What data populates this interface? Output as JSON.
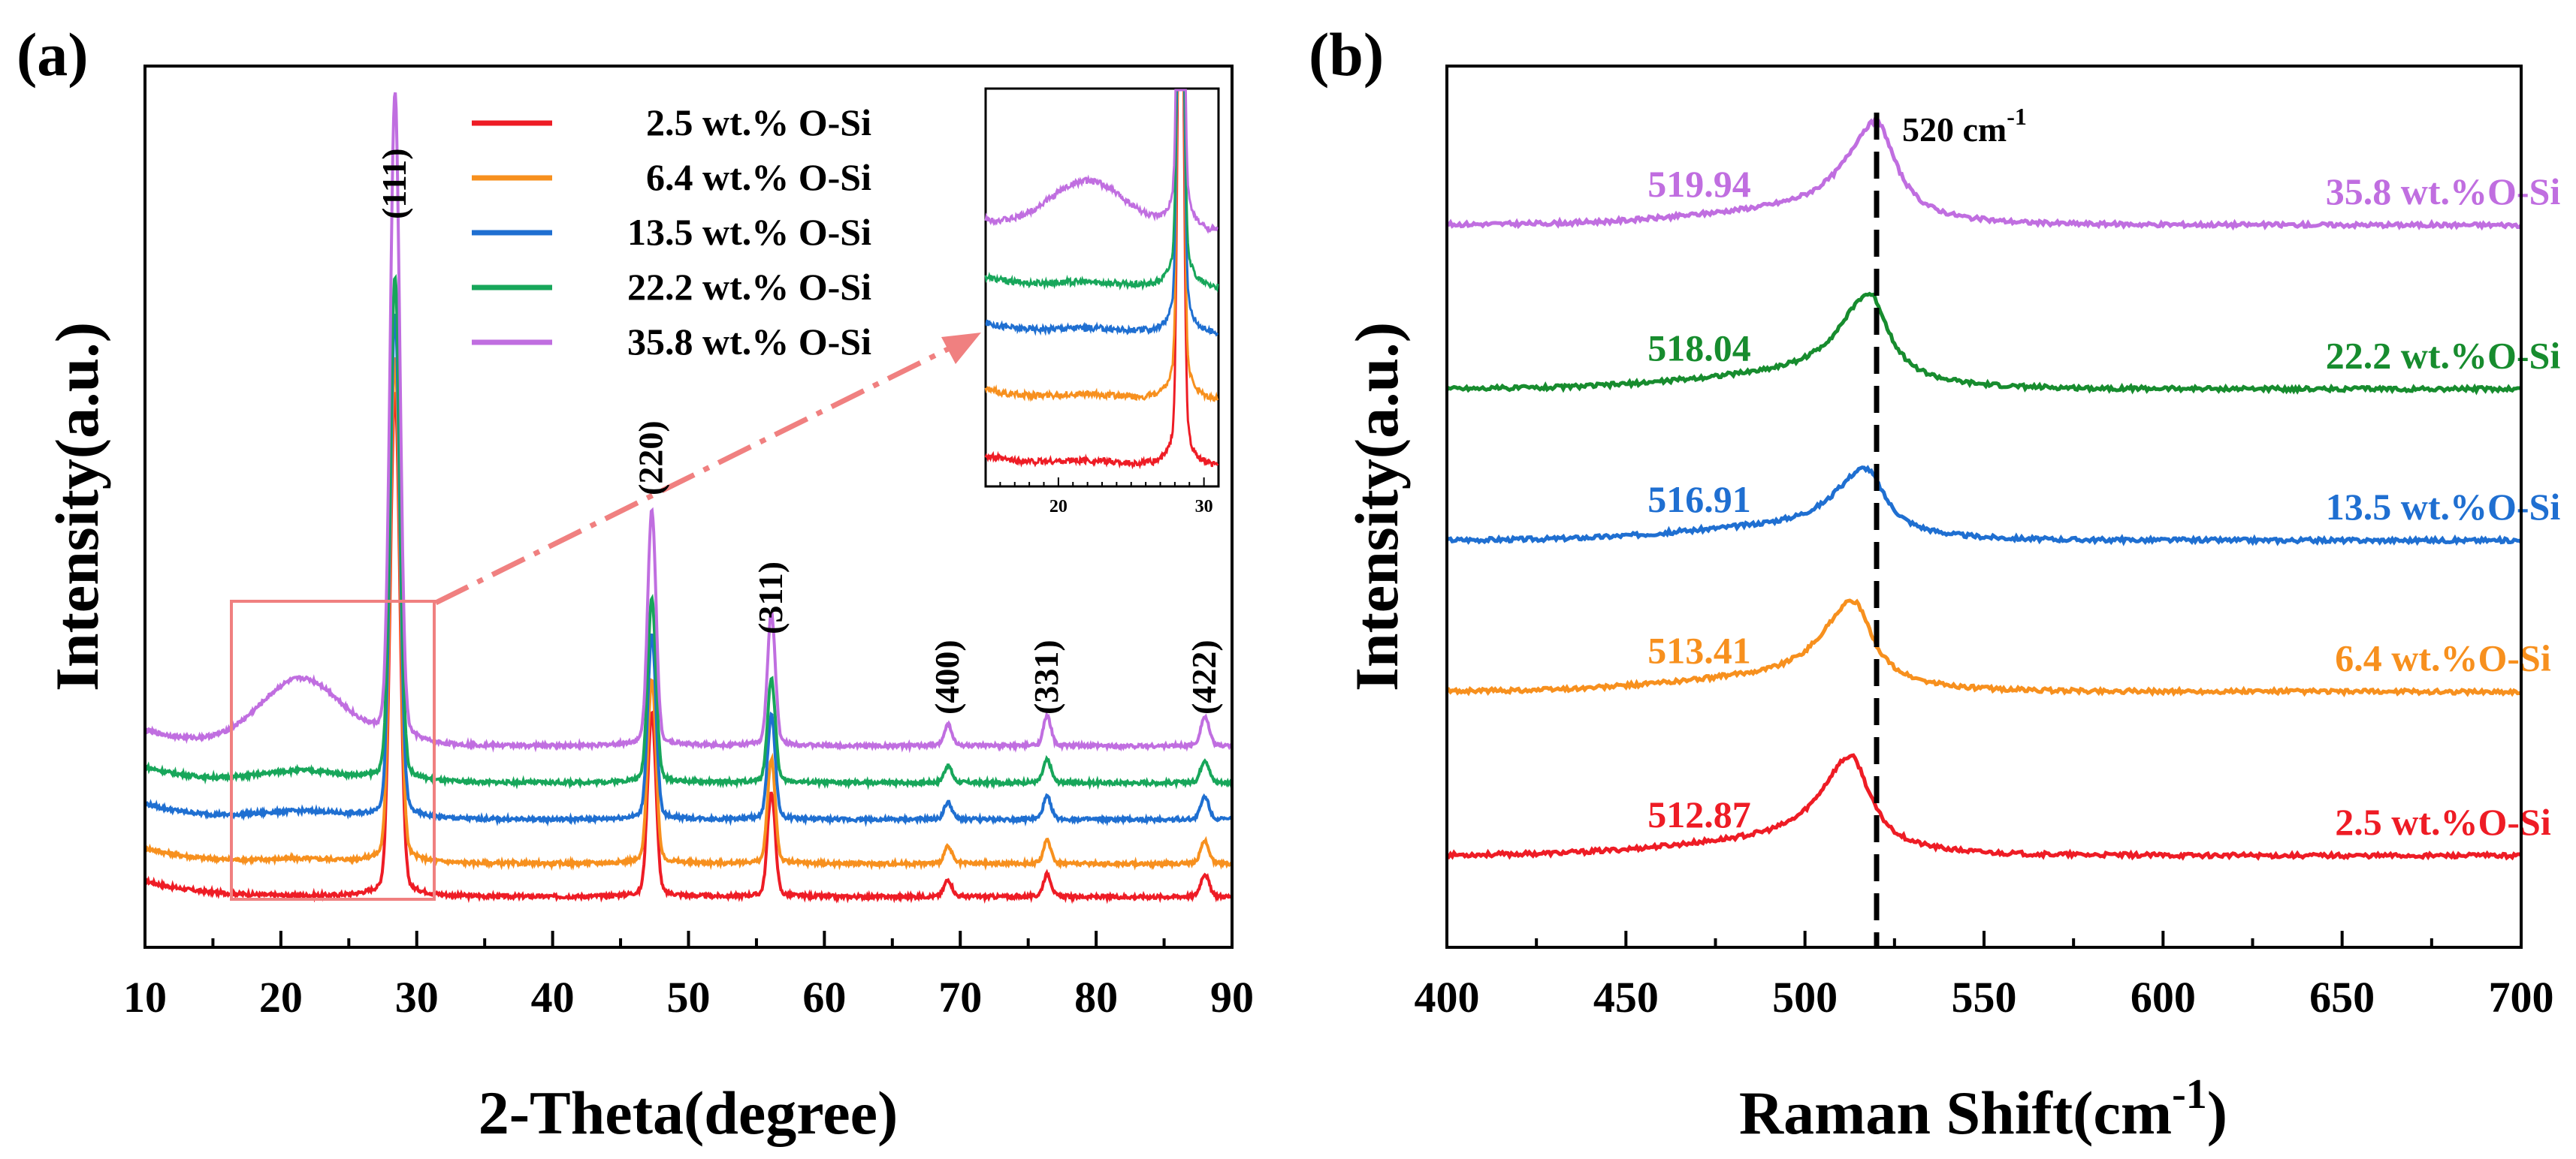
{
  "chart_data": [
    {
      "panel": "(a)",
      "type": "line",
      "xlabel": "2-Theta(degree)",
      "ylabel": "Intensity(a.u.)",
      "xlim": [
        10,
        90
      ],
      "xticks": [
        10,
        20,
        30,
        40,
        50,
        60,
        70,
        80,
        90
      ],
      "yticks": "none",
      "legend_location": "top-center",
      "legend": [
        "2.5 wt.% O-Si",
        "6.4 wt.% O-Si",
        "13.5 wt.% O-Si",
        "22.2 wt.% O-Si",
        "35.8 wt.% O-Si"
      ],
      "series": [
        {
          "name": "2.5 wt.% O-Si",
          "color": "#ee1c25",
          "offset": 0,
          "hump": 0
        },
        {
          "name": "6.4 wt.% O-Si",
          "color": "#f7901e",
          "offset": 0.45,
          "hump": 0.05
        },
        {
          "name": "13.5 wt.% O-Si",
          "color": "#1f6fd1",
          "offset": 1.05,
          "hump": 0.1
        },
        {
          "name": "22.2 wt.% O-Si",
          "color": "#17a65a",
          "offset": 1.55,
          "hump": 0.15
        },
        {
          "name": "35.8 wt.% O-Si",
          "color": "#c06ee0",
          "offset": 2.05,
          "hump": 0.9
        }
      ],
      "peaks": [
        {
          "label": "(111)",
          "position": 28.4
        },
        {
          "label": "(220)",
          "position": 47.3
        },
        {
          "label": "(311)",
          "position": 56.1
        },
        {
          "label": "(400)",
          "position": 69.1
        },
        {
          "label": "(331)",
          "position": 76.4
        },
        {
          "label": "(422)",
          "position": 88.0
        }
      ],
      "inset": {
        "xlim": [
          15,
          31
        ],
        "xticks": [
          20,
          30
        ],
        "source_region_x": [
          16.5,
          31.5
        ]
      }
    },
    {
      "panel": "(b)",
      "type": "line",
      "xlabel": "Raman Shift(cm",
      "xlabel_sup": "-1",
      "xlabel_close": ")",
      "ylabel": "Intensity(a.u.)",
      "xlim": [
        400,
        700
      ],
      "xticks": [
        400,
        450,
        500,
        550,
        600,
        650,
        700
      ],
      "reference_line": {
        "x": 520,
        "label": "520 cm",
        "label_sup": "-1"
      },
      "series": [
        {
          "name": "2.5 wt.%O-Si",
          "color": "#ee1c25",
          "peak": 512.87,
          "peak_label": "512.87",
          "offset": 0,
          "height": 1.1
        },
        {
          "name": "6.4 wt.%O-Si",
          "color": "#f7901e",
          "peak": 513.41,
          "peak_label": "513.41",
          "offset": 1.95,
          "height": 1.0
        },
        {
          "name": "13.5 wt.%O-Si",
          "color": "#1f6fd1",
          "peak": 516.91,
          "peak_label": "516.91",
          "offset": 3.75,
          "height": 0.78
        },
        {
          "name": "22.2 wt.%O-Si",
          "color": "#178c2e",
          "peak": 518.04,
          "peak_label": "518.04",
          "offset": 5.55,
          "height": 1.05
        },
        {
          "name": "35.8 wt.%O-Si",
          "color": "#c06ee0",
          "peak": 519.94,
          "peak_label": "519.94",
          "offset": 7.5,
          "height": 1.15
        }
      ]
    }
  ]
}
